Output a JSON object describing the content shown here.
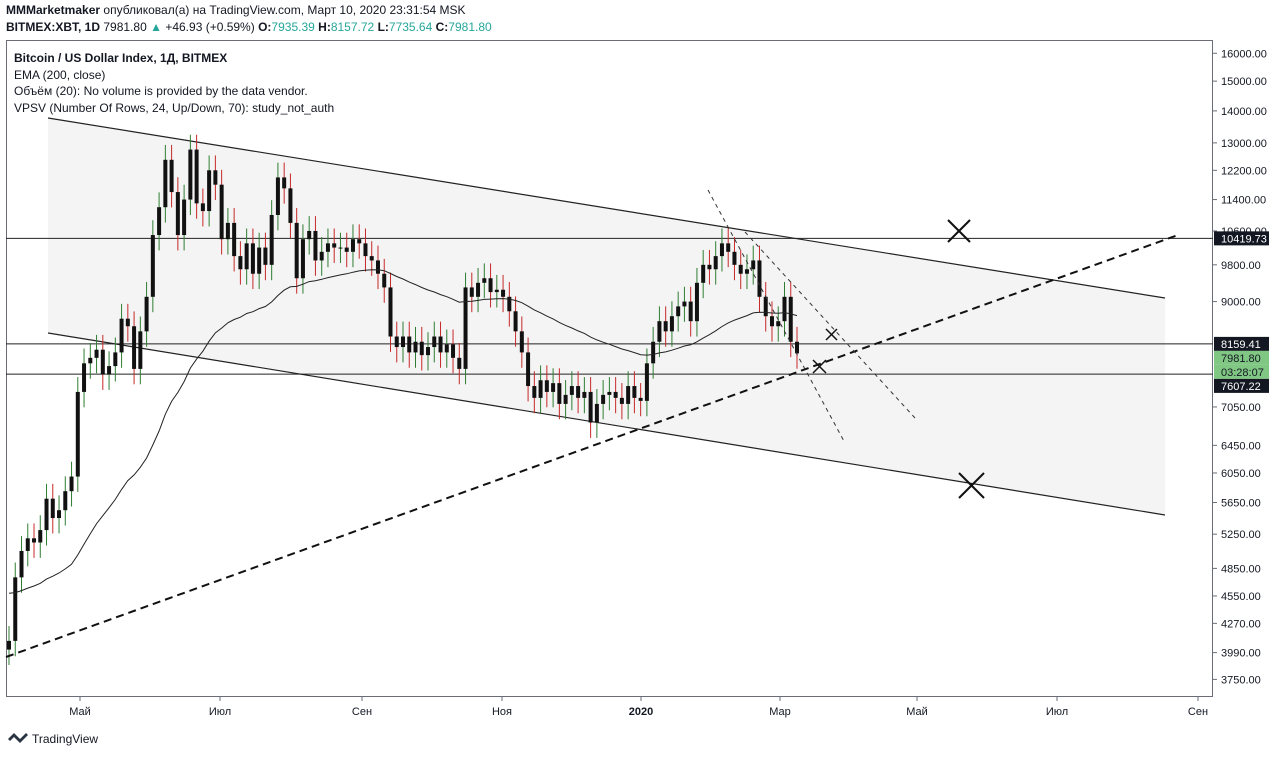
{
  "header": {
    "author": "MMMarketmaker",
    "published": "опубликовал(а) на TradingView.com, Март 10, 2020 23:31:54 MSK",
    "symbol": "BITMEX:XBT, 1D",
    "price": "7981.80",
    "change": "+46.93 (+0.59%)",
    "o_label": "O:",
    "o_value": "7935.39",
    "h_label": "H:",
    "h_value": "8157.72",
    "l_label": "L:",
    "l_value": "7735.64",
    "c_label": "C:",
    "c_value": "7981.80"
  },
  "legend": {
    "title": "Bitcoin / US Dollar Index, 1Д, BITMEX",
    "ema": "EMA (200, close)",
    "volume": "Объём (20): No volume is provided by the data vendor.",
    "vpsv": "VPSV (Number Of Rows, 24, Up/Down, 70): study_not_auth"
  },
  "footer": {
    "brand": "TradingView"
  },
  "colors": {
    "up": "#26a69a",
    "candle_up": "#2e7d32",
    "candle_down": "#c62828",
    "axis_text": "#131722",
    "label_bg_dark": "#131722",
    "label_bg_green": "#81c784"
  },
  "chart_data": {
    "type": "candlestick",
    "y_scale": "log",
    "y_range": [
      3600,
      16500
    ],
    "y_ticks": [
      "16000.00",
      "15000.00",
      "14000.00",
      "13000.00",
      "12200.00",
      "11400.00",
      "10600.00",
      "9800.00",
      "9000.00",
      "7050.00",
      "6450.00",
      "6050.00",
      "5650.00",
      "5250.00",
      "4850.00",
      "4550.00",
      "4270.00",
      "3990.00",
      "3750.00"
    ],
    "x_ticks": [
      "Май",
      "Июл",
      "Сен",
      "Ноя",
      "2020",
      "Мар",
      "Май",
      "Июл",
      "Сен"
    ],
    "price_labels": [
      {
        "text": "10419.73",
        "value": 10419.73,
        "style": "dark"
      },
      {
        "text": "8159.41",
        "value": 8159.41,
        "style": "dark"
      },
      {
        "text": "7981.80",
        "value": 7981.8,
        "style": "green"
      },
      {
        "text": "03:28:07",
        "value": 7800,
        "style": "green"
      },
      {
        "text": "7607.22",
        "value": 7607.22,
        "style": "dark"
      }
    ],
    "horizontal_levels": [
      10419.73,
      8159.41,
      7607.22
    ],
    "close_series": [
      4100,
      4750,
      5050,
      5200,
      5150,
      5300,
      5700,
      5450,
      5550,
      5800,
      6000,
      7300,
      7800,
      7900,
      8050,
      7600,
      7750,
      8000,
      8650,
      8500,
      7700,
      8400,
      9100,
      10500,
      11200,
      12500,
      11600,
      10500,
      11400,
      12800,
      11300,
      11100,
      12200,
      11800,
      10400,
      10800,
      10000,
      9700,
      10300,
      9600,
      10200,
      9800,
      11000,
      12000,
      11700,
      10800,
      9500,
      10400,
      10600,
      9900,
      10100,
      10300,
      10200,
      10200,
      10100,
      10400,
      10300,
      10000,
      9900,
      9600,
      9300,
      8300,
      8100,
      8300,
      8000,
      8200,
      7950,
      8100,
      8300,
      8000,
      8150,
      7900,
      7700,
      9300,
      9100,
      9400,
      9500,
      9200,
      9250,
      9100,
      8800,
      8400,
      8000,
      7400,
      7200,
      7500,
      7300,
      7450,
      7100,
      7250,
      7400,
      7200,
      7300,
      6800,
      7100,
      7250,
      7300,
      7200,
      7100,
      7400,
      7200,
      7150,
      7800,
      8200,
      8600,
      8400,
      8700,
      8900,
      9000,
      8600,
      9400,
      9800,
      9700,
      10000,
      10300,
      10100,
      9800,
      9600,
      9700,
      9900,
      9100,
      8700,
      8500,
      8600,
      9100,
      8200,
      7982
    ]
  }
}
